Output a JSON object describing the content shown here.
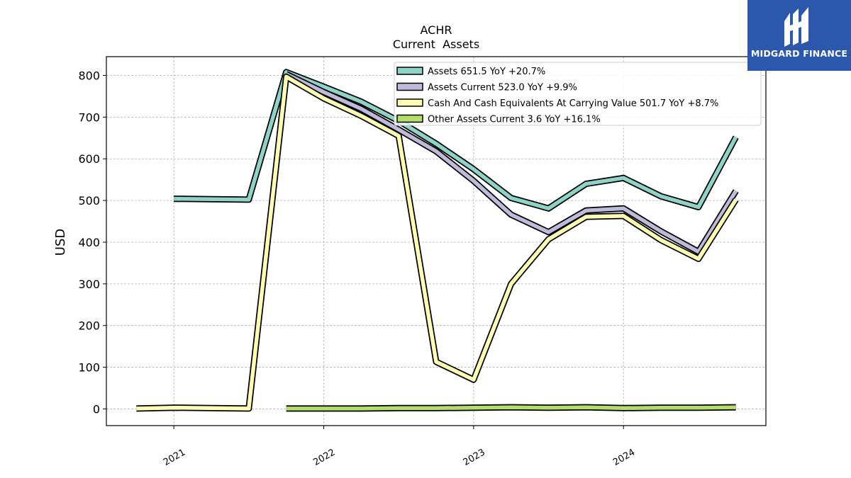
{
  "brand": {
    "name": "MIDGARD FINANCE",
    "mark": "M"
  },
  "chart_data": {
    "type": "line",
    "title": "ACHR",
    "subtitle": "Current  Assets",
    "ylabel": "USD",
    "xlabel": "",
    "ylim": [
      -40,
      845
    ],
    "xlim": [
      2020.55,
      2024.95
    ],
    "yticks": [
      0,
      100,
      200,
      300,
      400,
      500,
      600,
      700,
      800
    ],
    "xticks": [
      {
        "value": 2021,
        "label": "2021"
      },
      {
        "value": 2022,
        "label": "2022"
      },
      {
        "value": 2023,
        "label": "2023"
      },
      {
        "value": 2024,
        "label": "2024"
      }
    ],
    "grid": true,
    "legend_position": "top-right",
    "series": [
      {
        "name": "Assets",
        "legend": "Assets  651.5 YoY +20.7%",
        "color": "#8dd3c7",
        "points": [
          [
            2021.0,
            504
          ],
          [
            2021.5,
            502
          ],
          [
            2021.75,
            808
          ],
          [
            2022.0,
            773
          ],
          [
            2022.25,
            737
          ],
          [
            2022.5,
            691
          ],
          [
            2022.75,
            636
          ],
          [
            2023.0,
            575
          ],
          [
            2023.25,
            506
          ],
          [
            2023.5,
            481
          ],
          [
            2023.75,
            540
          ],
          [
            2024.0,
            554
          ],
          [
            2024.25,
            510
          ],
          [
            2024.5,
            484
          ],
          [
            2024.75,
            652
          ]
        ]
      },
      {
        "name": "Assets Current",
        "legend": "Assets Current  523.0 YoY +9.9%",
        "color": "#bebada",
        "points": [
          [
            2021.75,
            803
          ],
          [
            2022.0,
            760
          ],
          [
            2022.25,
            720
          ],
          [
            2022.5,
            670
          ],
          [
            2022.75,
            618
          ],
          [
            2023.0,
            547
          ],
          [
            2023.25,
            466
          ],
          [
            2023.5,
            424
          ],
          [
            2023.75,
            476
          ],
          [
            2024.0,
            481
          ],
          [
            2024.25,
            426
          ],
          [
            2024.5,
            377
          ],
          [
            2024.75,
            523
          ]
        ]
      },
      {
        "name": "Cash And Cash Equivalents At Carrying Value",
        "legend": "Cash And Cash Equivalents At Carrying Value  501.7 YoY +8.7%",
        "color": "#ffffb3",
        "points": [
          [
            2020.75,
            1
          ],
          [
            2021.0,
            3
          ],
          [
            2021.5,
            1
          ],
          [
            2021.75,
            797
          ],
          [
            2022.0,
            745
          ],
          [
            2022.25,
            703
          ],
          [
            2022.5,
            655
          ],
          [
            2022.75,
            113
          ],
          [
            2023.0,
            70
          ],
          [
            2023.25,
            300
          ],
          [
            2023.5,
            407
          ],
          [
            2023.75,
            461
          ],
          [
            2024.0,
            463
          ],
          [
            2024.25,
            405
          ],
          [
            2024.5,
            360
          ],
          [
            2024.75,
            502
          ]
        ]
      },
      {
        "name": "Other Assets Current",
        "legend": "Other Assets Current  3.6 YoY +16.1%",
        "color": "#b3de69",
        "points": [
          [
            2021.75,
            1
          ],
          [
            2022.0,
            1
          ],
          [
            2022.25,
            1
          ],
          [
            2022.5,
            2
          ],
          [
            2022.75,
            2
          ],
          [
            2023.0,
            3
          ],
          [
            2023.25,
            4
          ],
          [
            2023.5,
            3
          ],
          [
            2023.75,
            4
          ],
          [
            2024.0,
            2
          ],
          [
            2024.25,
            3
          ],
          [
            2024.5,
            3
          ],
          [
            2024.75,
            4
          ]
        ]
      }
    ]
  }
}
